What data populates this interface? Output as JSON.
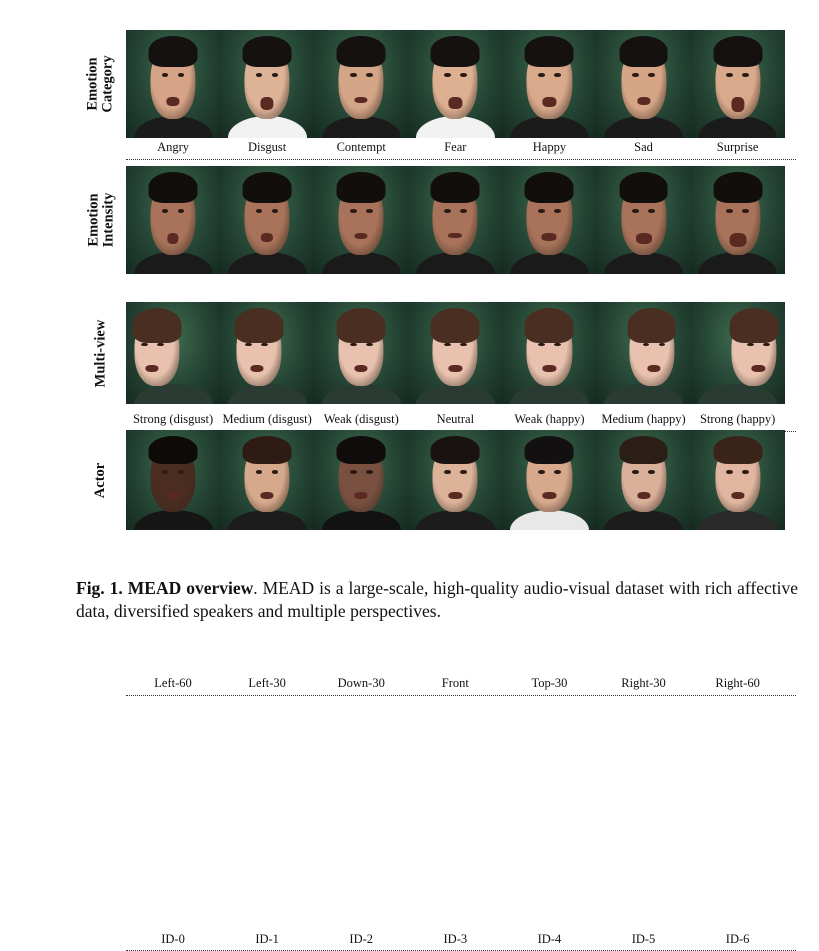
{
  "rows": [
    {
      "label": "Emotion Category",
      "label_lines": [
        "Emotion",
        "Category"
      ],
      "captions": [
        "Angry",
        "Disgust",
        "Contempt",
        "Fear",
        "Happy",
        "Sad",
        "Surprise"
      ],
      "skin": [
        "#d6a386",
        "#ddb398",
        "#d4a587",
        "#dcb091",
        "#d8a98a",
        "#d6a586",
        "#d9a98b"
      ],
      "hair": [
        "#141110",
        "#141110",
        "#141110",
        "#141110",
        "#141110",
        "#141110",
        "#141110"
      ],
      "torso": [
        "#1b1b1b",
        "#f2f2f2",
        "#1b1b1b",
        "#f2f2f2",
        "#1b1b1b",
        "#1b1b1b",
        "#1b1b1b"
      ]
    },
    {
      "label": "Emotion Intensity",
      "label_lines": [
        "Emotion",
        "Intensity"
      ],
      "captions": [
        "Strong (disgust)",
        "Medium (disgust)",
        "Weak (disgust)",
        "Neutral",
        "Weak (happy)",
        "Medium (happy)",
        "Strong (happy)"
      ],
      "skin": [
        "#a8735a",
        "#a8735a",
        "#a8735a",
        "#a8735a",
        "#a8735a",
        "#a8735a",
        "#a8735a"
      ],
      "hair": [
        "#120e0c",
        "#120e0c",
        "#120e0c",
        "#120e0c",
        "#120e0c",
        "#120e0c",
        "#120e0c"
      ],
      "torso": [
        "#1a1a1a",
        "#1a1a1a",
        "#1a1a1a",
        "#1a1a1a",
        "#1a1a1a",
        "#1a1a1a",
        "#1a1a1a"
      ]
    },
    {
      "label": "Multi-view",
      "label_lines": [
        "Multi-view"
      ],
      "captions": [
        "Left-60",
        "Left-30",
        "Down-30",
        "Front",
        "Top-30",
        "Right-30",
        "Right-60"
      ],
      "skin": [
        "#e8c2ae",
        "#e8c2ae",
        "#e8c2ae",
        "#e8c2ae",
        "#e8c2ae",
        "#e8c2ae",
        "#e8c2ae"
      ],
      "hair": [
        "#4a2e22",
        "#4a2e22",
        "#4a2e22",
        "#4a2e22",
        "#4a2e22",
        "#4a2e22",
        "#4a2e22"
      ],
      "torso": [
        "#2a3b33",
        "#2a3b33",
        "#2a3b33",
        "#2a3b33",
        "#2a3b33",
        "#2a3b33",
        "#2a3b33"
      ]
    },
    {
      "label": "Actor",
      "label_lines": [
        "Actor"
      ],
      "captions": [
        "ID-0",
        "ID-1",
        "ID-2",
        "ID-3",
        "ID-4",
        "ID-5",
        "ID-6"
      ],
      "skin": [
        "#4a2c20",
        "#d7a98c",
        "#7a5140",
        "#dcb299",
        "#d6a98c",
        "#d9b09a",
        "#e0b6a0"
      ],
      "hair": [
        "#0e0a08",
        "#2e1c14",
        "#0f0c0b",
        "#1a1210",
        "#121010",
        "#2b1e16",
        "#3a2418"
      ],
      "torso": [
        "#161616",
        "#1c1c1c",
        "#121212",
        "#1c1c1c",
        "#e8e8e8",
        "#1c1c1c",
        "#2a2a2a"
      ]
    }
  ],
  "caption": {
    "fig_label": "Fig. 1.",
    "title": "MEAD overview",
    "text": ". MEAD is a large-scale, high-quality audio-visual dataset with rich affective data, diversified speakers and multiple perspectives."
  }
}
